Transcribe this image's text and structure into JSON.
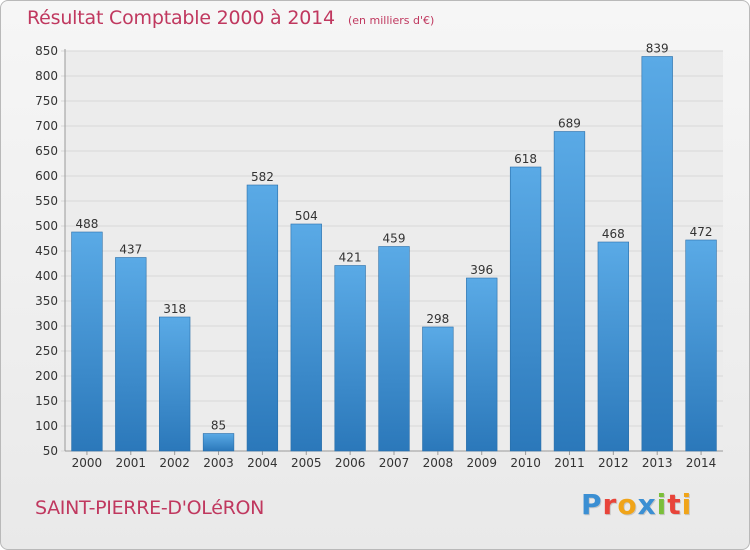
{
  "header": {
    "title": "Résultat Comptable 2000 à 2014",
    "subtitle": "(en milliers d'€)"
  },
  "footer": {
    "commune": "SAINT-PIERRE-D'OLéRON",
    "logo_letters": [
      "P",
      "r",
      "o",
      "x",
      "i",
      "t",
      "i"
    ],
    "logo_colors": [
      "#3b8fd3",
      "#e8443a",
      "#f0a419",
      "#3b8fd3",
      "#7bbf3a",
      "#e8443a",
      "#f0a419"
    ]
  },
  "colors": {
    "bar_top": "#5aaae6",
    "bar_bottom": "#2b78ba",
    "grid": "#d8d8d8",
    "axis_text": "#333333",
    "title": "#c0385f"
  },
  "chart_data": {
    "type": "bar",
    "title": "Résultat Comptable 2000 à 2014",
    "subtitle": "(en milliers d'€)",
    "xlabel": "",
    "ylabel": "",
    "categories": [
      "2000",
      "2001",
      "2002",
      "2003",
      "2004",
      "2005",
      "2006",
      "2007",
      "2008",
      "2009",
      "2010",
      "2011",
      "2012",
      "2013",
      "2014"
    ],
    "values": [
      488,
      437,
      318,
      85,
      582,
      504,
      421,
      459,
      298,
      396,
      618,
      689,
      468,
      839,
      472
    ],
    "ylim": [
      50,
      850
    ],
    "yticks": [
      50,
      100,
      150,
      200,
      250,
      300,
      350,
      400,
      450,
      500,
      550,
      600,
      650,
      700,
      750,
      800,
      850
    ],
    "grid": true,
    "data_labels": true
  }
}
